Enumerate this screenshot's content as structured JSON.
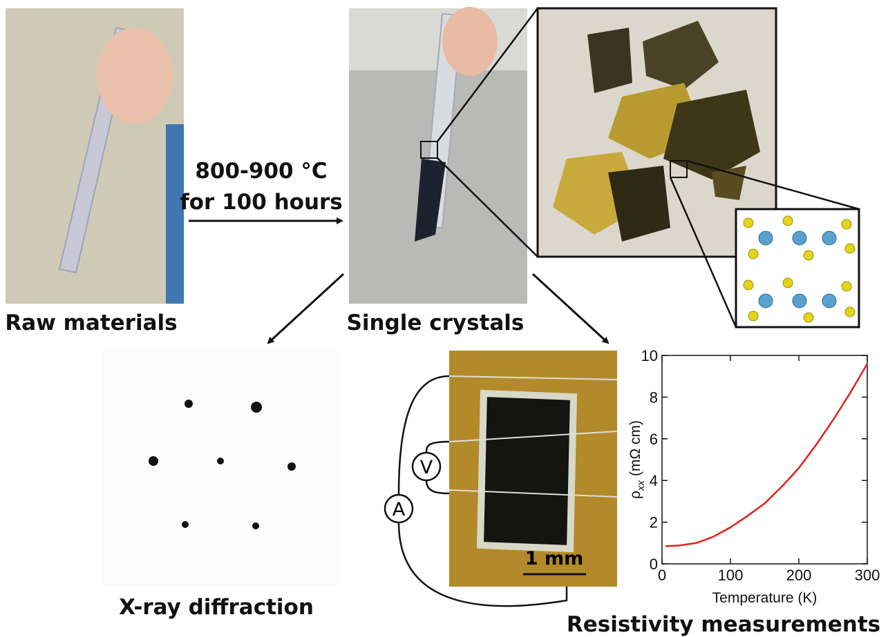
{
  "labels": {
    "raw": "Raw materials",
    "single": "Single crystals",
    "xray": "X-ray diffraction",
    "resistivity": "Resistivity measurements"
  },
  "process": [
    "800-900 °C",
    "for 100 hours"
  ],
  "circuit": {
    "voltmeter": "V",
    "ammeter": "A",
    "scale": "1 mm"
  },
  "chart_data": {
    "type": "line",
    "x": [
      5,
      25,
      50,
      75,
      100,
      125,
      150,
      175,
      200,
      225,
      250,
      275,
      300
    ],
    "series": [
      {
        "color": "#e0201c",
        "values": [
          0.85,
          0.88,
          1.0,
          1.3,
          1.75,
          2.3,
          2.9,
          3.7,
          4.6,
          5.7,
          6.9,
          8.2,
          9.6
        ]
      }
    ],
    "xlim": [
      0,
      300
    ],
    "ylim": [
      0,
      10
    ],
    "xticks": [
      0,
      100,
      200,
      300
    ],
    "yticks": [
      0,
      2,
      4,
      6,
      8,
      10
    ],
    "xlabel": "Temperature (K)",
    "ylabel": {
      "symbol": "ρ",
      "subscript": "xx",
      "unit": "(mΩ cm)"
    }
  }
}
